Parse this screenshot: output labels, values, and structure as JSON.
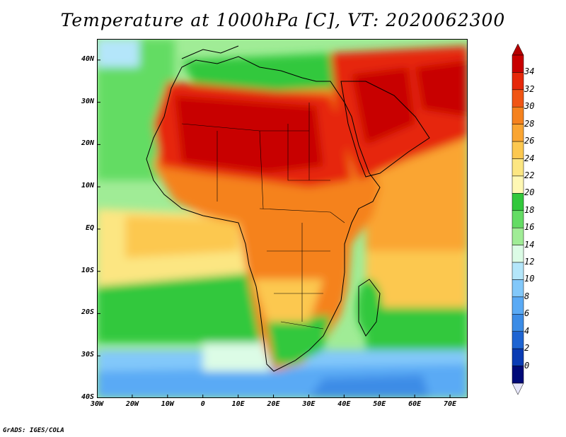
{
  "title": "Temperature at 1000hPa [C], VT: 2020062300",
  "credit": "GrADS: IGES/COLA",
  "map": {
    "lon_range": [
      -30,
      75
    ],
    "lat_range": [
      -40,
      45
    ],
    "lat_ticks": [
      {
        "value": 40,
        "label": "40N"
      },
      {
        "value": 30,
        "label": "30N"
      },
      {
        "value": 20,
        "label": "20N"
      },
      {
        "value": 10,
        "label": "10N"
      },
      {
        "value": 0,
        "label": "EQ"
      },
      {
        "value": -10,
        "label": "10S"
      },
      {
        "value": -20,
        "label": "20S"
      },
      {
        "value": -30,
        "label": "30S"
      },
      {
        "value": -40,
        "label": "40S"
      }
    ],
    "lon_ticks": [
      {
        "value": -30,
        "label": "30W"
      },
      {
        "value": -20,
        "label": "20W"
      },
      {
        "value": -10,
        "label": "10W"
      },
      {
        "value": 0,
        "label": "0"
      },
      {
        "value": 10,
        "label": "10E"
      },
      {
        "value": 20,
        "label": "20E"
      },
      {
        "value": 30,
        "label": "30E"
      },
      {
        "value": 40,
        "label": "40E"
      },
      {
        "value": 50,
        "label": "50E"
      },
      {
        "value": 60,
        "label": "60E"
      },
      {
        "value": 70,
        "label": "70E"
      }
    ]
  },
  "colorbar": {
    "levels": [
      "34",
      "32",
      "30",
      "28",
      "26",
      "24",
      "22",
      "20",
      "18",
      "16",
      "14",
      "12",
      "10",
      "8",
      "6",
      "4",
      "2",
      "0"
    ],
    "colors": [
      "#c80000",
      "#e6280a",
      "#f05514",
      "#f5821e",
      "#faa532",
      "#fcc850",
      "#fce682",
      "#fff8b4",
      "#32c83c",
      "#64dc64",
      "#a0ec96",
      "#dcfce6",
      "#b4e6fa",
      "#82c8fa",
      "#5aaaf5",
      "#3c8ce6",
      "#1e64d2",
      "#0a3cb4",
      "#000a78"
    ],
    "over_color": "#b40000",
    "under_color": "#e6e6fa"
  }
}
